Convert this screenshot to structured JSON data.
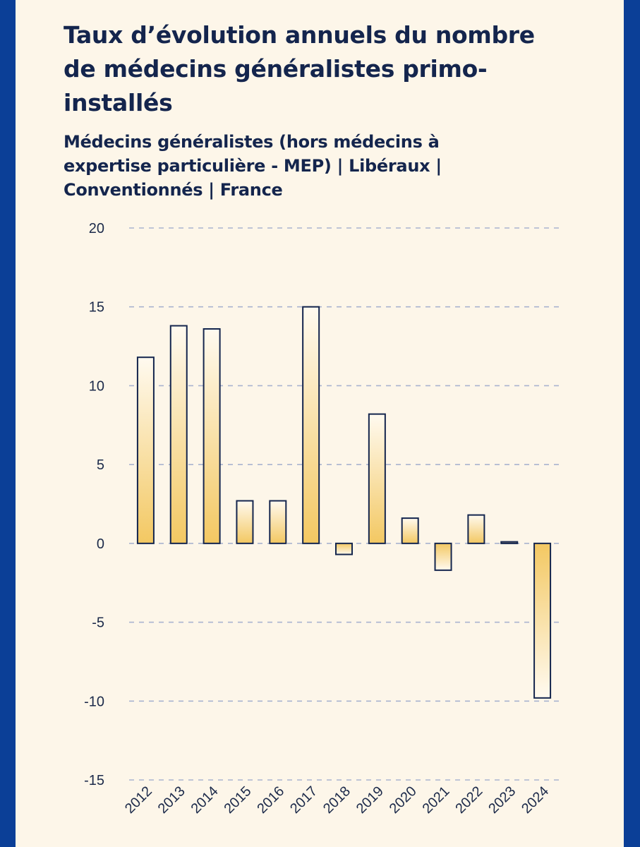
{
  "chart_data": {
    "type": "bar",
    "title": "Taux d’évolution annuels du nombre de médecins généralistes primo-installés",
    "subtitle": "Médecins généralistes (hors médecins à expertise particulière - MEP) | Libéraux | Conventionnés | France",
    "categories": [
      "2012",
      "2013",
      "2014",
      "2015",
      "2016",
      "2017",
      "2018",
      "2019",
      "2020",
      "2021",
      "2022",
      "2023",
      "2024"
    ],
    "values": [
      11.8,
      13.8,
      13.6,
      2.7,
      2.7,
      15.0,
      -0.7,
      8.2,
      1.6,
      -1.7,
      1.8,
      0.1,
      -9.8
    ],
    "yticks": [
      "20",
      "15",
      "10",
      "5",
      "0",
      "-5",
      "-10",
      "-15"
    ],
    "ylim": [
      -15,
      20
    ],
    "grid": true,
    "colors": {
      "bar_fill_dark": "#f3c862",
      "bar_fill_light": "#fffaf0",
      "bar_outline": "#14254d",
      "grid": "#a9b3cf",
      "page_border": "#0b3f97",
      "background": "#fdf6e9"
    }
  }
}
